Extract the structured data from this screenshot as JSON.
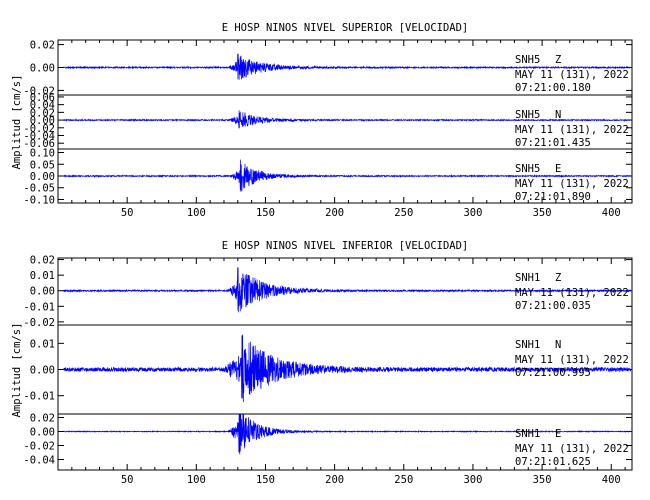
{
  "chart_data": [
    {
      "type": "line",
      "title": "E HOSP NINOS NIVEL SUPERIOR [VELOCIDAD]",
      "ylabel": "Amplitud [cm/s]",
      "xlim": [
        0,
        415
      ],
      "x_ticks": [
        "50",
        "100",
        "150",
        "200",
        "250",
        "300",
        "350",
        "400"
      ],
      "x_tick_values": [
        50,
        100,
        150,
        200,
        250,
        300,
        350,
        400
      ],
      "grid": false,
      "line_color": "#0000ff",
      "channels": [
        {
          "station": "SNH5",
          "component": "Z",
          "date": "MAY 11 (131), 2022",
          "time": "07:21:00.180",
          "ylim": [
            -0.024,
            0.024
          ],
          "y_ticks": [
            "0.02",
            "0.00",
            "-0.02"
          ],
          "y_tick_values": [
            0.02,
            0.0,
            -0.02
          ],
          "onset": 123,
          "peak_time": 130,
          "peak": 0.012,
          "noise": 0.0006,
          "decay": 16
        },
        {
          "station": "SNH5",
          "component": "N",
          "date": "MAY 11 (131), 2022",
          "time": "07:21:01.435",
          "ylim": [
            -0.075,
            0.065
          ],
          "y_ticks": [
            "0.06",
            "0.04",
            "0.02",
            "0.00",
            "-0.02",
            "-0.04",
            "-0.06"
          ],
          "y_tick_values": [
            0.06,
            0.04,
            0.02,
            0.0,
            -0.02,
            -0.04,
            -0.06
          ],
          "onset": 123,
          "peak_time": 131,
          "peak": 0.025,
          "noise": 0.0015,
          "decay": 14
        },
        {
          "station": "SNH5",
          "component": "E",
          "date": "MAY 11 (131), 2022",
          "time": "07:21:01.890",
          "ylim": [
            -0.115,
            0.115
          ],
          "y_ticks": [
            "0.10",
            "0.05",
            "0.00",
            "-0.05",
            "-0.10"
          ],
          "y_tick_values": [
            0.1,
            0.05,
            0.0,
            -0.05,
            -0.1
          ],
          "onset": 124,
          "peak_time": 132,
          "peak": 0.07,
          "noise": 0.0025,
          "decay": 12
        }
      ]
    },
    {
      "type": "line",
      "title": "E HOSP NINOS NIVEL INFERIOR [VELOCIDAD]",
      "ylabel": "Amplitud [cm/s]",
      "xlim": [
        0,
        415
      ],
      "x_ticks": [
        "50",
        "100",
        "150",
        "200",
        "250",
        "300",
        "350",
        "400"
      ],
      "x_tick_values": [
        50,
        100,
        150,
        200,
        250,
        300,
        350,
        400
      ],
      "grid": false,
      "line_color": "#0000ff",
      "channels": [
        {
          "station": "SNH1",
          "component": "Z",
          "date": "MAY 11 (131), 2022",
          "time": "07:21:00.035",
          "ylim": [
            -0.022,
            0.021
          ],
          "y_ticks": [
            "0.02",
            "0.01",
            "0.00",
            "-0.01",
            "-0.02"
          ],
          "y_tick_values": [
            0.02,
            0.01,
            0.0,
            -0.01,
            -0.02
          ],
          "onset": 123,
          "peak_time": 130,
          "peak": 0.015,
          "noise": 0.0005,
          "decay": 18
        },
        {
          "station": "SNH1",
          "component": "N",
          "date": "MAY 11 (131), 2022",
          "time": "07:21:00.995",
          "ylim": [
            -0.017,
            0.017
          ],
          "y_ticks": [
            "0.01",
            "0.00",
            "-0.01"
          ],
          "y_tick_values": [
            0.01,
            0.0,
            -0.01
          ],
          "onset": 120,
          "peak_time": 133,
          "peak": 0.013,
          "noise": 0.0008,
          "decay": 22
        },
        {
          "station": "SNH1",
          "component": "E",
          "date": "MAY 11 (131), 2022",
          "time": "07:21:01.625",
          "ylim": [
            -0.055,
            0.025
          ],
          "y_ticks": [
            "0.02",
            "0.00",
            "-0.02",
            "-0.04"
          ],
          "y_tick_values": [
            0.02,
            0.0,
            -0.02,
            -0.04
          ],
          "onset": 123,
          "peak_time": 131,
          "peak": 0.035,
          "noise": 0.0006,
          "decay": 12
        }
      ]
    }
  ]
}
